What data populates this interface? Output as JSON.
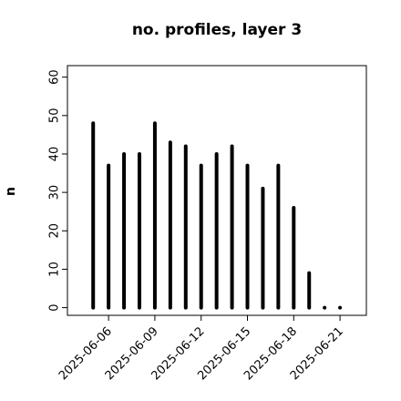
{
  "chart_data": {
    "type": "bar",
    "title": "no. profiles, layer 3",
    "ylabel": "n",
    "x": [
      "2025-06-05",
      "2025-06-06",
      "2025-06-07",
      "2025-06-08",
      "2025-06-09",
      "2025-06-10",
      "2025-06-11",
      "2025-06-12",
      "2025-06-13",
      "2025-06-14",
      "2025-06-15",
      "2025-06-16",
      "2025-06-17",
      "2025-06-18",
      "2025-06-19",
      "2025-06-20",
      "2025-06-21"
    ],
    "values": [
      48,
      37,
      40,
      40,
      48,
      43,
      42,
      37,
      40,
      42,
      37,
      31,
      37,
      26,
      9,
      0,
      0
    ],
    "color": "#000000",
    "xlim": [
      "2025-06-03T08:00Z",
      "2025-06-22T17:00Z"
    ],
    "xticks": [
      "2025-06-06",
      "2025-06-09",
      "2025-06-12",
      "2025-06-15",
      "2025-06-18",
      "2025-06-21"
    ],
    "xtick_colors": [
      "#000000",
      "#000000",
      "#228b22",
      "#000000",
      "#000000",
      "#000000"
    ],
    "ylim": [
      -2,
      63
    ],
    "yticks": [
      0,
      10,
      20,
      30,
      40,
      50,
      60
    ]
  }
}
